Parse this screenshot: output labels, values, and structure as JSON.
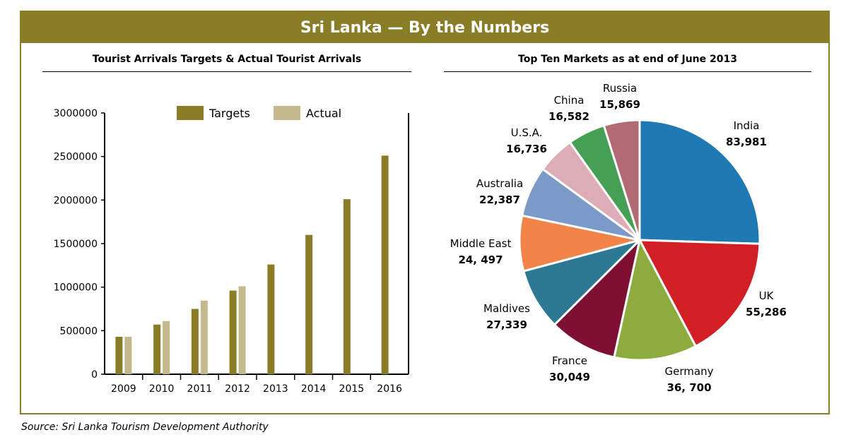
{
  "banner": {
    "title": "Sri Lanka — By the Numbers"
  },
  "source": "Source: Sri Lanka Tourism Development Authority",
  "colors": {
    "banner": "#8a7d28",
    "targets": "#8a7d28",
    "actual": "#c4b98c"
  },
  "chart_data": [
    {
      "type": "bar",
      "title": "Tourist Arrivals Targets & Actual Tourist Arrivals",
      "xlabel": "",
      "ylabel": "",
      "categories": [
        "2009",
        "2010",
        "2011",
        "2012",
        "2013",
        "2014",
        "2015",
        "2016"
      ],
      "series": [
        {
          "name": "Targets",
          "color": "#8a7d28",
          "values": [
            430000,
            570000,
            750000,
            960000,
            1260000,
            1600000,
            2010000,
            2510000
          ]
        },
        {
          "name": "Actual",
          "color": "#c4b98c",
          "values": [
            430000,
            610000,
            845000,
            1010000,
            null,
            null,
            null,
            null
          ]
        }
      ],
      "ylim": [
        0,
        3000000
      ],
      "yticks": [
        "0",
        "500000",
        "1000000",
        "1500000",
        "2000000",
        "2500000",
        "3000000"
      ],
      "ytick_values": [
        0,
        500000,
        1000000,
        1500000,
        2000000,
        2500000,
        3000000
      ],
      "legend": "top",
      "grid": false
    },
    {
      "type": "pie",
      "title": "Top Ten Markets as at end of June 2013",
      "slices": [
        {
          "label": "India",
          "value_label": "83,981",
          "value": 83981,
          "color": "#1f7ab3"
        },
        {
          "label": "UK",
          "value_label": "55,286",
          "value": 55286,
          "color": "#d21f26"
        },
        {
          "label": "Germany",
          "value_label": "36, 700",
          "value": 36700,
          "color": "#8dab3f"
        },
        {
          "label": "France",
          "value_label": "30,049",
          "value": 30049,
          "color": "#7e1034"
        },
        {
          "label": "Maldives",
          "value_label": "27,339",
          "value": 27339,
          "color": "#2d7893"
        },
        {
          "label": "Middle East",
          "value_label": "24, 497",
          "value": 24497,
          "color": "#f2844a"
        },
        {
          "label": "Australia",
          "value_label": "22,387",
          "value": 22387,
          "color": "#7c9ac8"
        },
        {
          "label": "U.S.A.",
          "value_label": "16,736",
          "value": 16736,
          "color": "#dcadb6"
        },
        {
          "label": "China",
          "value_label": "16,582",
          "value": 16582,
          "color": "#45a055"
        },
        {
          "label": "Russia",
          "value_label": "15,869",
          "value": 15869,
          "color": "#b06b73"
        }
      ]
    }
  ]
}
